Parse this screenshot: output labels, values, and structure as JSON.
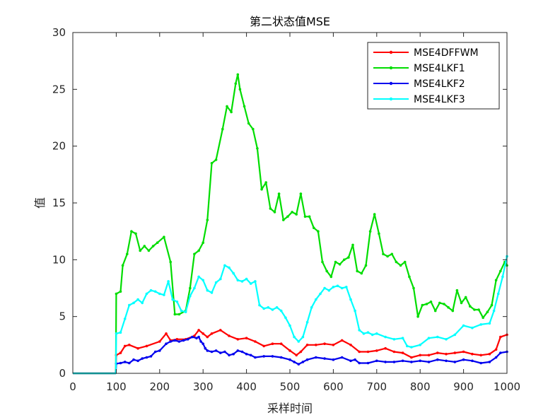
{
  "chart_data": {
    "type": "line",
    "title": "第二状态值MSE",
    "xlabel": "采样时间",
    "ylabel": "值",
    "xlim": [
      0,
      1000
    ],
    "ylim": [
      0,
      30
    ],
    "xticks": [
      0,
      100,
      200,
      300,
      400,
      500,
      600,
      700,
      800,
      900,
      1000
    ],
    "yticks": [
      0,
      5,
      10,
      15,
      20,
      25,
      30
    ],
    "grid": false,
    "legend_position": "top-right",
    "series": [
      {
        "name": "MSE4DFFWM",
        "color": "#ff0000",
        "x": [
          0,
          99,
          100,
          110,
          120,
          130,
          150,
          170,
          200,
          215,
          225,
          240,
          260,
          280,
          290,
          300,
          310,
          320,
          340,
          360,
          380,
          400,
          420,
          440,
          460,
          480,
          500,
          515,
          525,
          540,
          560,
          580,
          600,
          620,
          640,
          660,
          680,
          700,
          720,
          740,
          760,
          780,
          800,
          820,
          840,
          860,
          880,
          900,
          920,
          940,
          960,
          975,
          985,
          1000
        ],
        "values": [
          0,
          0,
          1.6,
          1.8,
          2.4,
          2.5,
          2.2,
          2.4,
          2.8,
          3.5,
          2.9,
          3.0,
          3.0,
          3.3,
          3.8,
          3.5,
          3.2,
          3.5,
          3.8,
          3.3,
          3.0,
          3.1,
          2.8,
          2.4,
          2.6,
          2.6,
          2.0,
          1.6,
          1.9,
          2.5,
          2.5,
          2.6,
          2.5,
          2.9,
          2.5,
          1.9,
          1.9,
          2.0,
          2.2,
          1.9,
          1.8,
          1.4,
          1.6,
          1.6,
          1.8,
          1.7,
          1.8,
          1.9,
          1.7,
          1.6,
          1.7,
          2.1,
          3.2,
          3.4
        ]
      },
      {
        "name": "MSE4LKF1",
        "color": "#00dd00",
        "x": [
          0,
          99,
          100,
          110,
          115,
          125,
          135,
          145,
          155,
          165,
          175,
          185,
          195,
          210,
          225,
          235,
          245,
          260,
          270,
          280,
          290,
          300,
          310,
          320,
          330,
          345,
          355,
          365,
          375,
          380,
          385,
          395,
          405,
          415,
          425,
          435,
          445,
          455,
          465,
          475,
          485,
          495,
          505,
          515,
          525,
          535,
          545,
          555,
          565,
          575,
          585,
          595,
          605,
          615,
          625,
          635,
          645,
          655,
          665,
          675,
          685,
          695,
          705,
          715,
          725,
          735,
          745,
          755,
          765,
          775,
          785,
          795,
          805,
          815,
          825,
          835,
          845,
          855,
          865,
          875,
          885,
          895,
          905,
          915,
          925,
          935,
          945,
          955,
          965,
          975,
          985,
          995,
          1000
        ],
        "values": [
          0,
          0,
          7.0,
          7.2,
          9.5,
          10.5,
          12.5,
          12.3,
          10.8,
          11.2,
          10.8,
          11.2,
          11.5,
          12.0,
          9.8,
          5.2,
          5.2,
          5.5,
          7.5,
          10.5,
          10.8,
          11.5,
          13.5,
          18.5,
          18.8,
          21.5,
          23.5,
          23.0,
          25.5,
          26.3,
          25.0,
          23.5,
          22.0,
          21.5,
          19.8,
          16.2,
          16.8,
          14.5,
          14.2,
          15.8,
          13.5,
          13.8,
          14.2,
          14.0,
          15.8,
          13.8,
          13.8,
          12.8,
          12.5,
          9.8,
          9.0,
          8.5,
          9.8,
          9.6,
          10.0,
          10.2,
          11.3,
          9.0,
          8.8,
          9.5,
          12.5,
          14.0,
          12.3,
          10.5,
          10.3,
          10.5,
          9.8,
          9.5,
          9.8,
          8.5,
          7.5,
          5.0,
          6.0,
          6.1,
          6.3,
          5.5,
          6.2,
          6.1,
          5.8,
          5.5,
          7.3,
          6.2,
          6.7,
          5.9,
          5.6,
          5.6,
          4.9,
          5.4,
          6.0,
          8.2,
          9.0,
          9.8,
          9.5
        ]
      },
      {
        "name": "MSE4LKF2",
        "color": "#0000ee",
        "x": [
          0,
          99,
          100,
          110,
          120,
          130,
          140,
          150,
          160,
          170,
          180,
          190,
          200,
          215,
          225,
          235,
          245,
          255,
          265,
          275,
          285,
          290,
          295,
          300,
          305,
          310,
          320,
          330,
          340,
          350,
          360,
          370,
          380,
          390,
          400,
          410,
          420,
          440,
          460,
          480,
          500,
          510,
          520,
          530,
          540,
          560,
          580,
          600,
          620,
          640,
          650,
          660,
          680,
          700,
          720,
          740,
          760,
          780,
          800,
          820,
          840,
          860,
          880,
          900,
          920,
          940,
          960,
          975,
          985,
          1000
        ],
        "values": [
          0,
          0,
          0.85,
          0.9,
          1.0,
          0.9,
          1.2,
          1.1,
          1.3,
          1.4,
          1.5,
          1.9,
          2.0,
          2.6,
          2.8,
          2.9,
          2.8,
          2.9,
          3.0,
          3.2,
          3.1,
          3.2,
          2.8,
          2.6,
          2.2,
          2.0,
          1.9,
          2.0,
          1.8,
          1.9,
          1.6,
          1.7,
          2.0,
          1.9,
          1.7,
          1.6,
          1.4,
          1.5,
          1.5,
          1.4,
          1.2,
          1.0,
          0.8,
          1.0,
          1.2,
          1.4,
          1.3,
          1.2,
          1.4,
          1.1,
          1.2,
          0.9,
          0.9,
          1.1,
          1.0,
          1.0,
          1.1,
          1.0,
          1.1,
          1.0,
          1.2,
          1.1,
          1.0,
          1.2,
          1.1,
          0.9,
          1.0,
          1.4,
          1.8,
          1.9
        ]
      },
      {
        "name": "MSE4LKF3",
        "color": "#00ffff",
        "x": [
          0,
          99,
          100,
          110,
          120,
          130,
          140,
          150,
          160,
          170,
          180,
          190,
          200,
          210,
          220,
          230,
          240,
          250,
          260,
          270,
          280,
          290,
          300,
          310,
          320,
          330,
          340,
          350,
          360,
          370,
          380,
          390,
          400,
          410,
          420,
          430,
          440,
          450,
          460,
          470,
          480,
          490,
          500,
          510,
          520,
          530,
          540,
          550,
          560,
          570,
          580,
          590,
          600,
          610,
          620,
          630,
          640,
          650,
          660,
          670,
          680,
          690,
          700,
          720,
          740,
          760,
          770,
          780,
          800,
          820,
          840,
          860,
          880,
          900,
          920,
          940,
          960,
          970,
          980,
          990,
          1000
        ],
        "values": [
          0,
          0,
          3.5,
          3.6,
          4.8,
          6.0,
          6.2,
          6.5,
          6.2,
          7.0,
          7.3,
          7.2,
          7.0,
          6.9,
          8.1,
          6.5,
          6.3,
          5.5,
          5.4,
          6.8,
          7.5,
          8.5,
          8.2,
          7.3,
          7.1,
          8.0,
          8.3,
          9.5,
          9.3,
          8.8,
          8.2,
          8.1,
          8.3,
          7.9,
          8.1,
          6.0,
          5.7,
          5.8,
          5.6,
          5.8,
          5.5,
          4.9,
          4.2,
          3.2,
          2.8,
          3.2,
          4.5,
          5.8,
          6.5,
          7.0,
          7.5,
          7.3,
          7.6,
          7.7,
          7.5,
          7.6,
          6.5,
          5.5,
          3.8,
          3.5,
          3.6,
          3.4,
          3.5,
          3.2,
          3.0,
          3.1,
          2.4,
          2.3,
          2.5,
          3.1,
          3.2,
          3.0,
          3.4,
          4.2,
          4.0,
          4.3,
          4.4,
          5.5,
          7.0,
          8.5,
          10.3
        ]
      }
    ]
  }
}
